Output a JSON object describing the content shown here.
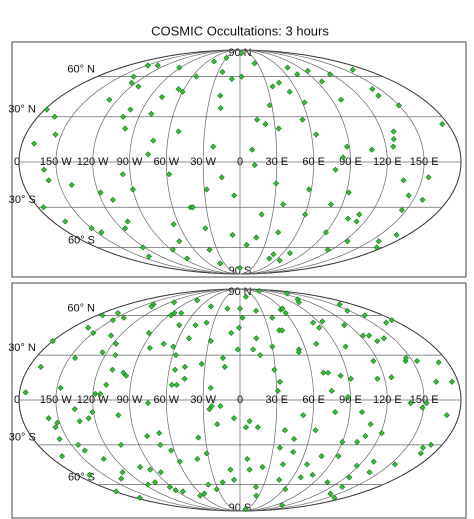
{
  "chart_data": [
    {
      "type": "scatter",
      "projection": "mollweide",
      "title": "COSMIC Occultations: 3 hours",
      "color": "#33c233",
      "xlim": [
        -180,
        180
      ],
      "ylim": [
        -90,
        90
      ],
      "xticks": [
        {
          "value": -150,
          "label": "150 W"
        },
        {
          "value": -120,
          "label": "120 W"
        },
        {
          "value": -90,
          "label": "90 W"
        },
        {
          "value": -60,
          "label": "60 W"
        },
        {
          "value": -30,
          "label": "30 W"
        },
        0,
        {
          "value": 30,
          "label": "30 E"
        },
        {
          "value": 60,
          "label": "60 E"
        },
        {
          "value": 90,
          "label": "90 E"
        },
        {
          "value": 120,
          "label": "120 E"
        },
        {
          "value": 150,
          "label": "150 E"
        }
      ],
      "yticks": [
        {
          "value": 90,
          "label": "90 N"
        },
        {
          "value": 60,
          "label": "60° N"
        },
        {
          "value": 30,
          "label": "30° N"
        },
        0,
        {
          "value": -30,
          "label": "30° S"
        },
        {
          "value": -60,
          "label": "60° S"
        },
        {
          "value": -90,
          "label": "90 S"
        }
      ],
      "x": [
        -170,
        -150,
        -132,
        -118,
        -101,
        -88,
        -75,
        -60,
        -44,
        -30,
        -15,
        2,
        18,
        33,
        47,
        62,
        78,
        95,
        110,
        128,
        142,
        158,
        172,
        -165,
        -140,
        -125,
        -108,
        -92,
        -70,
        -52,
        -38,
        -20,
        -5,
        10,
        25,
        40,
        55,
        70,
        88,
        102,
        118,
        135,
        150,
        168,
        -175,
        -155,
        -138,
        -112,
        -96,
        -80,
        -65,
        -48,
        -28,
        -10,
        8,
        22,
        38,
        52,
        68,
        84,
        99,
        115,
        130,
        146,
        162,
        -160,
        -145,
        -128,
        -110,
        -85,
        -72,
        -55,
        -35,
        -18,
        0,
        15,
        30,
        45,
        60,
        75,
        92,
        108,
        124,
        140,
        155,
        175,
        -168,
        -148,
        -122,
        -104,
        -90,
        -66,
        -42,
        -24,
        -8,
        12,
        28,
        48,
        64,
        80,
        96,
        112,
        126,
        144,
        160,
        -178,
        -158,
        -134,
        -116,
        -98,
        -78,
        -58,
        -40,
        -22,
        5,
        20,
        36,
        58,
        72,
        90
      ],
      "values": [
        12,
        -45,
        70,
        -20,
        35,
        -62,
        5,
        48,
        -30,
        78,
        -10,
        60,
        -52,
        22,
        -70,
        40,
        -5,
        65,
        -35,
        15,
        50,
        -25,
        -60,
        30,
        -15,
        55,
        -40,
        68,
        -55,
        20,
        -75,
        45,
        -22,
        8,
        72,
        -48,
        28,
        -65,
        10,
        -38,
        62,
        -12,
        38,
        -50,
        -30,
        18,
        -68,
        52,
        -8,
        32,
        -42,
        74,
        -18,
        58,
        -58,
        25,
        -28,
        48,
        -72,
        3,
        42,
        -62,
        20,
        -32,
        66,
        -5,
        -48,
        42,
        -25,
        -70,
        14,
        60,
        -45,
        36,
        -80,
        28,
        -14,
        55,
        -35,
        62,
        -20,
        8,
        -55,
        45,
        -10,
        25,
        -40,
        70,
        -60,
        30,
        -18,
        50,
        -30,
        64,
        -50,
        -2,
        38,
        -66,
        18,
        -28,
        56,
        -40,
        10,
        -22,
        -55,
        35,
        -12,
        60,
        -45,
        22,
        44,
        -8,
        -62,
        10,
        84,
        -35,
        52,
        -18,
        68,
        -48
      ]
    },
    {
      "type": "scatter",
      "projection": "mollweide",
      "color": "#33c233",
      "xlim": [
        -180,
        180
      ],
      "ylim": [
        -90,
        90
      ],
      "xticks": [
        {
          "value": -150,
          "label": "150 W"
        },
        {
          "value": -120,
          "label": "120 W"
        },
        {
          "value": -90,
          "label": "90 W"
        },
        {
          "value": -60,
          "label": "60 W"
        },
        {
          "value": -30,
          "label": "30 W"
        },
        0,
        {
          "value": 30,
          "label": "30 E"
        },
        {
          "value": 60,
          "label": "60 E"
        },
        {
          "value": 90,
          "label": "90 E"
        },
        {
          "value": 120,
          "label": "120 E"
        },
        {
          "value": 150,
          "label": "150 E"
        }
      ],
      "yticks": [
        {
          "value": 90,
          "label": "90 N"
        },
        {
          "value": 60,
          "label": "60° N"
        },
        {
          "value": 30,
          "label": "30° N"
        },
        0,
        {
          "value": -30,
          "label": "30° S"
        },
        {
          "value": -60,
          "label": "60° S"
        },
        {
          "value": -90,
          "label": "90 S"
        }
      ],
      "x": [
        -175,
        -168,
        -160,
        -152,
        -145,
        -137,
        -129,
        -121,
        -113,
        -106,
        -98,
        -90,
        -83,
        -75,
        -67,
        -59,
        -52,
        -44,
        -36,
        -28,
        -21,
        -13,
        -5,
        3,
        10,
        18,
        26,
        33,
        41,
        49,
        57,
        64,
        72,
        80,
        88,
        95,
        103,
        111,
        118,
        126,
        134,
        141,
        149,
        157,
        165,
        172,
        -172,
        -163,
        -155,
        -147,
        -139,
        -131,
        -124,
        -116,
        -108,
        -100,
        -93,
        -85,
        -77,
        -69,
        -62,
        -54,
        -46,
        -38,
        -31,
        -23,
        -15,
        -7,
        0,
        8,
        16,
        23,
        31,
        39,
        47,
        54,
        62,
        70,
        78,
        85,
        93,
        101,
        109,
        116,
        124,
        132,
        139,
        147,
        155,
        162,
        170,
        178,
        -178,
        -170,
        -158,
        -150,
        -142,
        -134,
        -126,
        -118,
        -111,
        -103,
        -95,
        -87,
        -80,
        -72,
        -64,
        -56,
        -49,
        -41,
        -33,
        -25,
        -18,
        -10,
        -2,
        5,
        13,
        21,
        29,
        36,
        44,
        52,
        60,
        67,
        75,
        83,
        90,
        98,
        106,
        114,
        121,
        129,
        137,
        144,
        152,
        160,
        168,
        175,
        -166,
        -149,
        -133,
        -117,
        -102,
        -86,
        -71,
        -55,
        -40,
        -24,
        -9,
        7,
        22,
        38,
        53,
        69,
        84,
        100,
        115,
        131,
        146,
        162,
        -180,
        -157,
        -141,
        -125,
        -110,
        -94,
        -79,
        -63,
        -47,
        -32,
        -16,
        -1,
        15,
        30,
        46,
        61,
        77,
        92,
        108,
        123,
        139,
        154,
        170,
        -173,
        -144,
        -114,
        -82,
        -50,
        -19,
        12,
        43,
        74,
        105,
        136,
        166,
        -135,
        -92,
        -57,
        25,
        88
      ],
      "values": [
        5,
        -38,
        62,
        -15,
        28,
        -55,
        44,
        -8,
        72,
        -30,
        18,
        -65,
        35,
        -2,
        52,
        -42,
        10,
        68,
        -25,
        40,
        -58,
        22,
        -12,
        58,
        -48,
        30,
        -70,
        12,
        48,
        -35,
        65,
        -20,
        38,
        -52,
        2,
        55,
        -28,
        75,
        -45,
        15,
        -62,
        42,
        -5,
        60,
        -32,
        25,
        -72,
        50,
        -18,
        8,
        70,
        -40,
        32,
        -60,
        20,
        -10,
        46,
        -50,
        62,
        -22,
        36,
        -68,
        14,
        54,
        -36,
        -4,
        28,
        -56,
        66,
        -14,
        42,
        -46,
        6,
        58,
        -26,
        34,
        -64,
        18,
        -8,
        50,
        -38,
        72,
        -16,
        26,
        -54,
        40,
        -2,
        64,
        -44,
        12,
        -30,
        56,
        -66,
        22,
        -12,
        46,
        -34,
        68,
        -50,
        4,
        30,
        -58,
        16,
        60,
        -24,
        38,
        -70,
        10,
        52,
        -40,
        24,
        -6,
        66,
        -48,
        34,
        -18,
        78,
        -62,
        20,
        -32,
        48,
        -10,
        62,
        -44,
        6,
        54,
        -28,
        36,
        -58,
        14,
        -22,
        44,
        -68,
        26,
        -2,
        70,
        -36,
        12,
        -52,
        56,
        -14,
        38,
        -46,
        62,
        -30,
        20,
        -60,
        8,
        46,
        -40,
        64,
        -20,
        32,
        -54,
        16,
        -8,
        52,
        -42,
        28,
        -72,
        40,
        -26,
        58,
        -12,
        10,
        -48,
        74,
        -34,
        22,
        -64,
        -4,
        50,
        -18,
        36,
        -56,
        66,
        -38,
        14,
        -24,
        44,
        -50,
        26,
        -10,
        60,
        -30,
        4,
        -66,
        42,
        -16,
        34,
        -44,
        18,
        -80,
        82,
        54,
        -6,
        -62,
        30,
        -86,
        86
      ]
    }
  ]
}
